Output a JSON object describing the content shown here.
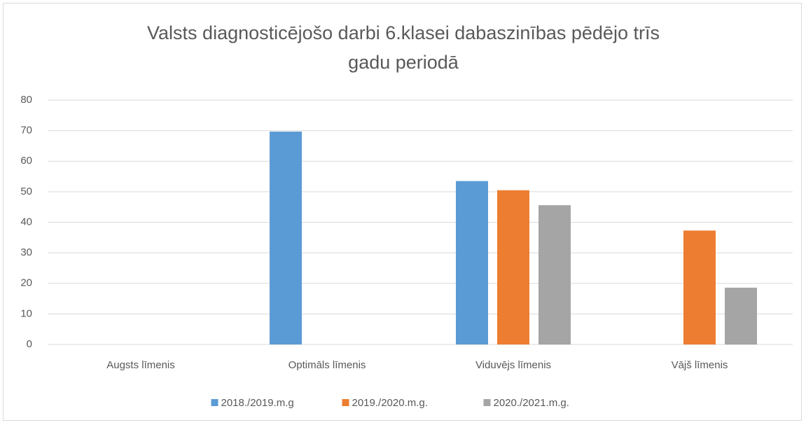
{
  "chart_data": {
    "type": "bar",
    "title": "Valsts diagnosticējošo darbi 6.klasei dabaszinības pēdējo trīs gadu periodā",
    "categories": [
      "Augsts līmenis",
      "Optimāls līmenis",
      "Viduvējs līmenis",
      "Vājš līmenis"
    ],
    "series": [
      {
        "name": "2018./2019.m.g",
        "color": "#5b9bd5",
        "values": [
          null,
          69.7,
          53.5,
          null
        ]
      },
      {
        "name": "2019./2020.m.g.",
        "color": "#ed7d31",
        "values": [
          null,
          null,
          50.5,
          37.3
        ]
      },
      {
        "name": "2020./2021.m.g.",
        "color": "#a5a5a5",
        "values": [
          null,
          null,
          45.6,
          18.6
        ]
      }
    ],
    "ylim": [
      0,
      80
    ],
    "yticks": [
      0,
      10,
      20,
      30,
      40,
      50,
      60,
      70,
      80
    ],
    "grid": true,
    "legend": "bottom"
  }
}
